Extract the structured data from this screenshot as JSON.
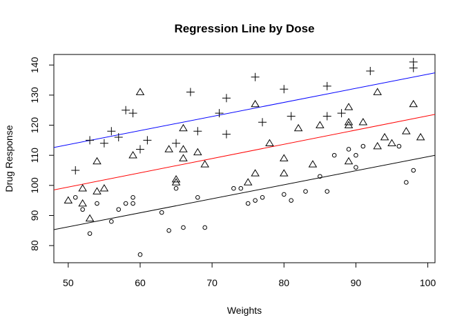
{
  "chart_data": {
    "type": "scatter",
    "title": "Regression Line by Dose",
    "xlabel": "Weights",
    "ylabel": "Drug Response",
    "xlim": [
      48,
      101
    ],
    "ylim": [
      74.3,
      143.5
    ],
    "xticks": [
      50,
      60,
      70,
      80,
      90,
      100
    ],
    "yticks": [
      80,
      90,
      100,
      110,
      120,
      130,
      140
    ],
    "grid": false,
    "legend": "none",
    "series": [
      {
        "marker": "circle",
        "points": [
          [
            51,
            96
          ],
          [
            52,
            92
          ],
          [
            53,
            84
          ],
          [
            54,
            94
          ],
          [
            56,
            88
          ],
          [
            57,
            92
          ],
          [
            58,
            94
          ],
          [
            59,
            96
          ],
          [
            59,
            94
          ],
          [
            60,
            77
          ],
          [
            63,
            91
          ],
          [
            64,
            85
          ],
          [
            65,
            99
          ],
          [
            66,
            86
          ],
          [
            68,
            96
          ],
          [
            69,
            86
          ],
          [
            73,
            99
          ],
          [
            74,
            99
          ],
          [
            75,
            94
          ],
          [
            76,
            95
          ],
          [
            77,
            96
          ],
          [
            80,
            97
          ],
          [
            81,
            95
          ],
          [
            83,
            98
          ],
          [
            85,
            103
          ],
          [
            86,
            98
          ],
          [
            87,
            110
          ],
          [
            89,
            112
          ],
          [
            90,
            110
          ],
          [
            90,
            106
          ],
          [
            91,
            113
          ],
          [
            96,
            113
          ],
          [
            97,
            101
          ],
          [
            98,
            105
          ]
        ]
      },
      {
        "marker": "triangle",
        "points": [
          [
            50,
            95
          ],
          [
            52,
            94
          ],
          [
            52,
            99
          ],
          [
            53,
            89
          ],
          [
            54,
            98
          ],
          [
            54,
            108
          ],
          [
            55,
            99
          ],
          [
            59,
            110
          ],
          [
            60,
            131
          ],
          [
            64,
            112
          ],
          [
            65,
            102
          ],
          [
            65,
            101
          ],
          [
            66,
            119
          ],
          [
            66,
            112
          ],
          [
            66,
            109
          ],
          [
            68,
            111
          ],
          [
            69,
            107
          ],
          [
            75,
            101
          ],
          [
            76,
            127
          ],
          [
            76,
            104
          ],
          [
            78,
            114
          ],
          [
            80,
            109
          ],
          [
            80,
            104
          ],
          [
            82,
            119
          ],
          [
            84,
            107
          ],
          [
            85,
            120
          ],
          [
            89,
            126
          ],
          [
            89,
            121
          ],
          [
            89,
            120
          ],
          [
            89,
            108
          ],
          [
            91,
            121
          ],
          [
            93,
            131
          ],
          [
            93,
            113
          ],
          [
            94,
            116
          ],
          [
            95,
            114
          ],
          [
            97,
            118
          ],
          [
            98,
            127
          ],
          [
            99,
            116
          ]
        ]
      },
      {
        "marker": "plus",
        "points": [
          [
            51,
            105
          ],
          [
            53,
            115
          ],
          [
            55,
            114
          ],
          [
            56,
            118
          ],
          [
            57,
            116
          ],
          [
            58,
            125
          ],
          [
            59,
            124
          ],
          [
            60,
            112
          ],
          [
            61,
            115
          ],
          [
            65,
            114
          ],
          [
            67,
            131
          ],
          [
            68,
            118
          ],
          [
            71,
            124
          ],
          [
            72,
            129
          ],
          [
            72,
            117
          ],
          [
            76,
            136
          ],
          [
            77,
            121
          ],
          [
            80,
            132
          ],
          [
            81,
            123
          ],
          [
            86,
            133
          ],
          [
            86,
            123
          ],
          [
            88,
            124
          ],
          [
            92,
            138
          ],
          [
            98,
            141
          ],
          [
            98,
            139
          ]
        ]
      }
    ],
    "lines": [
      {
        "color": "#000000",
        "x": [
          48,
          101
        ],
        "y": [
          85.3,
          110.0
        ]
      },
      {
        "color": "#ff0000",
        "x": [
          48,
          101
        ],
        "y": [
          98.5,
          123.6
        ]
      },
      {
        "color": "#0000ff",
        "x": [
          48,
          101
        ],
        "y": [
          112.6,
          137.4
        ]
      }
    ]
  }
}
